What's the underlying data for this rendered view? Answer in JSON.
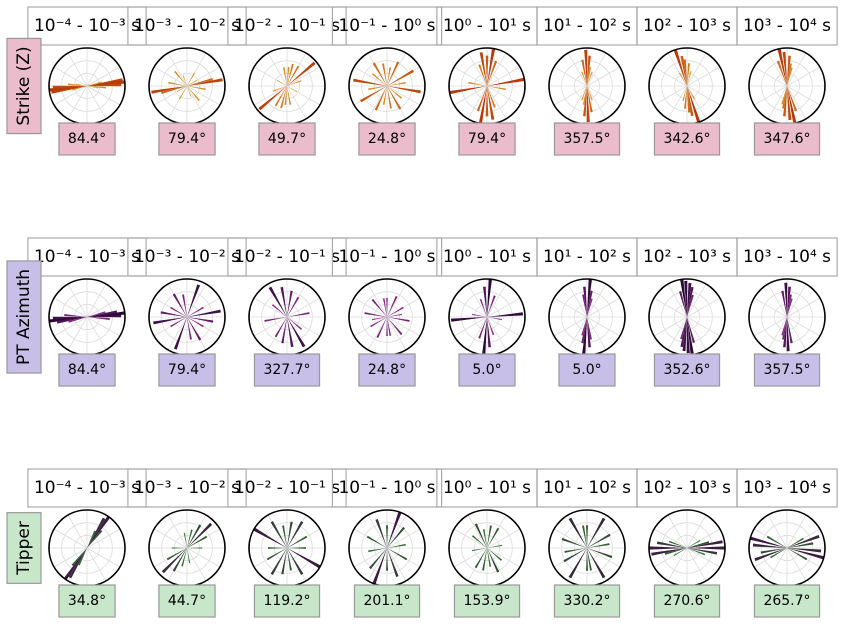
{
  "chart_data": [
    {
      "type": "rose",
      "ylabel": "Strike (Z)",
      "label_color": "#ebbccb",
      "colors": [
        "#d8cf50",
        "#d98a20",
        "#b8380a"
      ],
      "grid": true,
      "rlim": [
        0,
        1
      ],
      "categories": [
        "10⁻⁴ - 10⁻³ s",
        "10⁻³ - 10⁻² s",
        "10⁻² - 10⁻¹ s",
        "10⁻¹ - 10⁰ s",
        "10⁰ - 10¹ s",
        "10¹ - 10² s",
        "10² - 10³ s",
        "10³ - 10⁴ s"
      ],
      "values": [
        84.4,
        79.4,
        49.7,
        24.8,
        79.4,
        357.5,
        342.6,
        347.6
      ],
      "value_labels": [
        "84.4°",
        "79.4°",
        "49.7°",
        "24.8°",
        "79.4°",
        "357.5°",
        "342.6°",
        "347.6°"
      ],
      "petals": [
        {
          "angles": [
            84,
            80,
            88,
            95,
            75,
            100
          ],
          "lengths": [
            1.0,
            0.95,
            0.9,
            0.5,
            0.4,
            0.3
          ]
        },
        {
          "angles": [
            80,
            75,
            140,
            30,
            100,
            160,
            60
          ],
          "lengths": [
            0.95,
            0.7,
            0.5,
            0.4,
            0.5,
            0.3,
            0.3
          ]
        },
        {
          "angles": [
            50,
            30,
            15,
            170,
            70,
            120,
            5
          ],
          "lengths": [
            0.95,
            0.6,
            0.6,
            0.5,
            0.4,
            0.3,
            0.5
          ]
        },
        {
          "angles": [
            25,
            60,
            100,
            150,
            170,
            10,
            130,
            80
          ],
          "lengths": [
            0.7,
            0.8,
            0.9,
            0.7,
            0.6,
            0.5,
            0.5,
            0.5
          ]
        },
        {
          "angles": [
            80,
            10,
            170,
            0,
            20,
            160,
            100
          ],
          "lengths": [
            1.0,
            1.0,
            0.9,
            0.8,
            0.7,
            0.6,
            0.5
          ]
        },
        {
          "angles": [
            178,
            5,
            170,
            10,
            20,
            160
          ],
          "lengths": [
            0.95,
            0.8,
            0.7,
            0.5,
            0.4,
            0.4
          ]
        },
        {
          "angles": [
            162,
            170,
            5,
            175,
            15,
            150
          ],
          "lengths": [
            1.0,
            0.8,
            0.6,
            0.7,
            0.4,
            0.4
          ]
        },
        {
          "angles": [
            168,
            175,
            5,
            160,
            15,
            10
          ],
          "lengths": [
            1.0,
            0.9,
            0.8,
            0.7,
            0.5,
            0.6
          ]
        }
      ]
    },
    {
      "type": "rose",
      "ylabel": "PT Azimuth",
      "label_color": "#c8bfe8",
      "colors": [
        "#d77ae0",
        "#8a2a8a",
        "#2a0a35"
      ],
      "grid": true,
      "rlim": [
        0,
        1
      ],
      "categories": [
        "10⁻⁴ - 10⁻³ s",
        "10⁻³ - 10⁻² s",
        "10⁻² - 10⁻¹ s",
        "10⁻¹ - 10⁰ s",
        "10⁰ - 10¹ s",
        "10¹ - 10² s",
        "10² - 10³ s",
        "10³ - 10⁴ s"
      ],
      "values": [
        84.4,
        79.4,
        327.7,
        24.8,
        5.0,
        5.0,
        352.6,
        357.5
      ],
      "value_labels": [
        "84.4°",
        "79.4°",
        "327.7°",
        "24.8°",
        "5.0°",
        "5.0°",
        "352.6°",
        "357.5°"
      ],
      "petals": [
        {
          "angles": [
            84,
            88,
            80,
            95,
            75
          ],
          "lengths": [
            1.0,
            0.9,
            0.8,
            0.6,
            0.5
          ]
        },
        {
          "angles": [
            80,
            20,
            150,
            100,
            60,
            170,
            120
          ],
          "lengths": [
            0.9,
            0.9,
            0.7,
            0.7,
            0.5,
            0.6,
            0.5
          ]
        },
        {
          "angles": [
            150,
            170,
            30,
            80,
            10,
            130
          ],
          "lengths": [
            0.9,
            0.8,
            0.6,
            0.6,
            0.7,
            0.5
          ]
        },
        {
          "angles": [
            25,
            60,
            100,
            140,
            0,
            170,
            80
          ],
          "lengths": [
            0.6,
            0.5,
            0.6,
            0.6,
            0.5,
            0.5,
            0.4
          ]
        },
        {
          "angles": [
            5,
            175,
            85,
            20,
            160,
            100
          ],
          "lengths": [
            1.0,
            0.8,
            0.95,
            0.6,
            0.5,
            0.4
          ]
        },
        {
          "angles": [
            5,
            175,
            10,
            170,
            15
          ],
          "lengths": [
            1.0,
            0.8,
            0.7,
            0.6,
            0.5
          ]
        },
        {
          "angles": [
            172,
            178,
            5,
            165,
            15,
            10
          ],
          "lengths": [
            1.0,
            0.95,
            0.9,
            0.7,
            0.6,
            0.8
          ]
        },
        {
          "angles": [
            178,
            5,
            170,
            10,
            15
          ],
          "lengths": [
            0.9,
            0.8,
            0.7,
            0.6,
            0.5
          ]
        }
      ]
    },
    {
      "type": "rose",
      "ylabel": "Tipper",
      "label_color": "#c8e6c9",
      "colors": [
        "#8fd08a",
        "#2f6b30",
        "#3a1a40"
      ],
      "grid": true,
      "rlim": [
        0,
        1
      ],
      "categories": [
        "10⁻⁴ - 10⁻³ s",
        "10⁻³ - 10⁻² s",
        "10⁻² - 10⁻¹ s",
        "10⁻¹ - 10⁰ s",
        "10⁰ - 10¹ s",
        "10¹ - 10² s",
        "10² - 10³ s",
        "10³ - 10⁴ s"
      ],
      "values": [
        34.8,
        44.7,
        119.2,
        201.1,
        153.9,
        330.2,
        270.6,
        265.7
      ],
      "value_labels": [
        "34.8°",
        "44.7°",
        "119.2°",
        "201.1°",
        "153.9°",
        "330.2°",
        "270.6°",
        "265.7°"
      ],
      "petals": [
        {
          "angles": [
            35,
            30,
            40,
            25
          ],
          "lengths": [
            1.0,
            0.9,
            0.6,
            0.5
          ]
        },
        {
          "angles": [
            45,
            30,
            60,
            15,
            90,
            170
          ],
          "lengths": [
            0.9,
            0.7,
            0.6,
            0.5,
            0.4,
            0.4
          ]
        },
        {
          "angles": [
            120,
            150,
            30,
            10,
            60,
            90,
            170
          ],
          "lengths": [
            1.0,
            0.8,
            0.8,
            0.7,
            0.6,
            0.5,
            0.6
          ]
        },
        {
          "angles": [
            20,
            160,
            40,
            80,
            120,
            0
          ],
          "lengths": [
            1.0,
            0.8,
            0.7,
            0.5,
            0.6,
            0.6
          ]
        },
        {
          "angles": [
            155,
            10,
            30,
            130,
            80,
            170
          ],
          "lengths": [
            0.7,
            0.6,
            0.6,
            0.5,
            0.4,
            0.5
          ]
        },
        {
          "angles": [
            150,
            30,
            60,
            110,
            80,
            0,
            170
          ],
          "lengths": [
            0.9,
            0.9,
            0.7,
            0.7,
            0.6,
            0.6,
            0.6
          ]
        },
        {
          "angles": [
            90,
            80,
            100,
            75,
            110,
            60
          ],
          "lengths": [
            1.0,
            0.95,
            0.8,
            0.6,
            0.5,
            0.4
          ]
        },
        {
          "angles": [
            105,
            70,
            95,
            120,
            80,
            60
          ],
          "lengths": [
            1.0,
            0.9,
            0.9,
            0.6,
            0.7,
            0.5
          ]
        }
      ]
    }
  ]
}
